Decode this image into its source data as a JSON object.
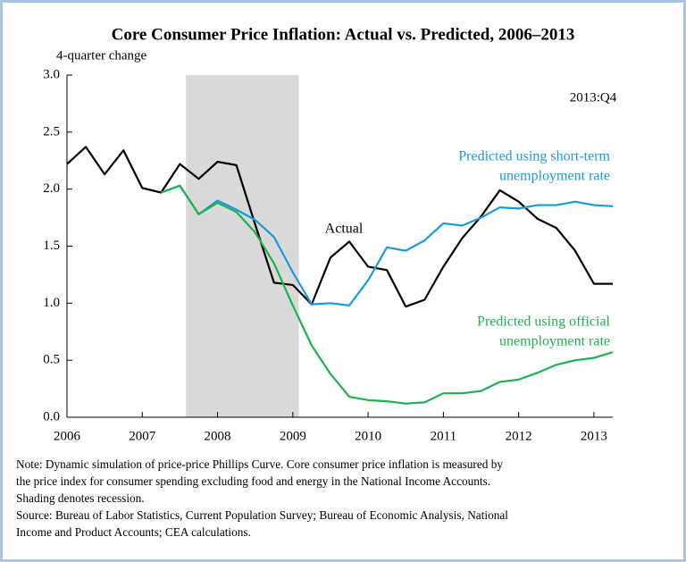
{
  "chart_data": {
    "type": "line",
    "title": "Core Consumer Price Inflation: Actual vs. Predicted, 2006–2013",
    "y_label": "4-quarter change",
    "period_label": "2013:Q4",
    "x": [
      2006,
      2006.25,
      2006.5,
      2006.75,
      2007,
      2007.25,
      2007.5,
      2007.75,
      2008,
      2008.25,
      2008.5,
      2008.75,
      2009,
      2009.25,
      2009.5,
      2009.75,
      2010,
      2010.25,
      2010.5,
      2010.75,
      2011,
      2011.25,
      2011.5,
      2011.75,
      2012,
      2012.25,
      2012.5,
      2012.75,
      2013,
      2013.25
    ],
    "series": [
      {
        "name": "Actual",
        "color": "#000000",
        "values": [
          2.22,
          2.37,
          2.13,
          2.34,
          2.01,
          1.97,
          2.22,
          2.09,
          2.24,
          2.21,
          1.69,
          1.18,
          1.16,
          0.99,
          1.4,
          1.54,
          1.32,
          1.29,
          0.97,
          1.03,
          1.32,
          1.57,
          1.76,
          1.99,
          1.89,
          1.74,
          1.66,
          1.46,
          1.17,
          1.17
        ]
      },
      {
        "name": [
          "Predicted using short-term",
          "unemployment rate"
        ],
        "color": "#1a9bd7",
        "values": [
          null,
          null,
          null,
          null,
          null,
          1.97,
          2.03,
          1.78,
          1.9,
          1.82,
          1.73,
          1.58,
          1.27,
          0.99,
          1.0,
          0.98,
          1.2,
          1.49,
          1.46,
          1.55,
          1.7,
          1.68,
          1.75,
          1.84,
          1.83,
          1.86,
          1.86,
          1.89,
          1.86,
          1.85
        ]
      },
      {
        "name": [
          "Predicted using official",
          "unemployment rate"
        ],
        "color": "#1fb050",
        "values": [
          null,
          null,
          null,
          null,
          null,
          1.97,
          2.03,
          1.78,
          1.88,
          1.8,
          1.62,
          1.35,
          0.98,
          0.63,
          0.38,
          0.18,
          0.15,
          0.14,
          0.12,
          0.13,
          0.21,
          0.21,
          0.23,
          0.31,
          0.33,
          0.39,
          0.46,
          0.5,
          0.52,
          0.57
        ]
      }
    ],
    "recession": [
      2007.58,
      2009.08
    ],
    "recession_color": "#d9d9d9",
    "xlim": [
      2006,
      2013.25
    ],
    "xticks": [
      2006,
      2007,
      2008,
      2009,
      2010,
      2011,
      2012,
      2013
    ],
    "ylim": [
      0,
      3
    ],
    "yticks": [
      {
        "value": 0,
        "label": "0.0"
      },
      {
        "value": 0.5,
        "label": "0.5"
      },
      {
        "value": 1,
        "label": "1.0"
      },
      {
        "value": 1.5,
        "label": "1.5"
      },
      {
        "value": 2,
        "label": "2.0"
      },
      {
        "value": 2.5,
        "label": "2.5"
      },
      {
        "value": 3,
        "label": "3.0"
      }
    ],
    "notes": [
      "Note: Dynamic simulation of price-price Phillips Curve. Core consumer price inflation is measured by",
      "the price index for consumer spending excluding food and energy in the National Income Accounts.",
      "Shading denotes recession.",
      "Source: Bureau of Labor Statistics, Current Population Survey; Bureau of Economic Analysis, National",
      "Income and Product Accounts; CEA calculations."
    ]
  }
}
